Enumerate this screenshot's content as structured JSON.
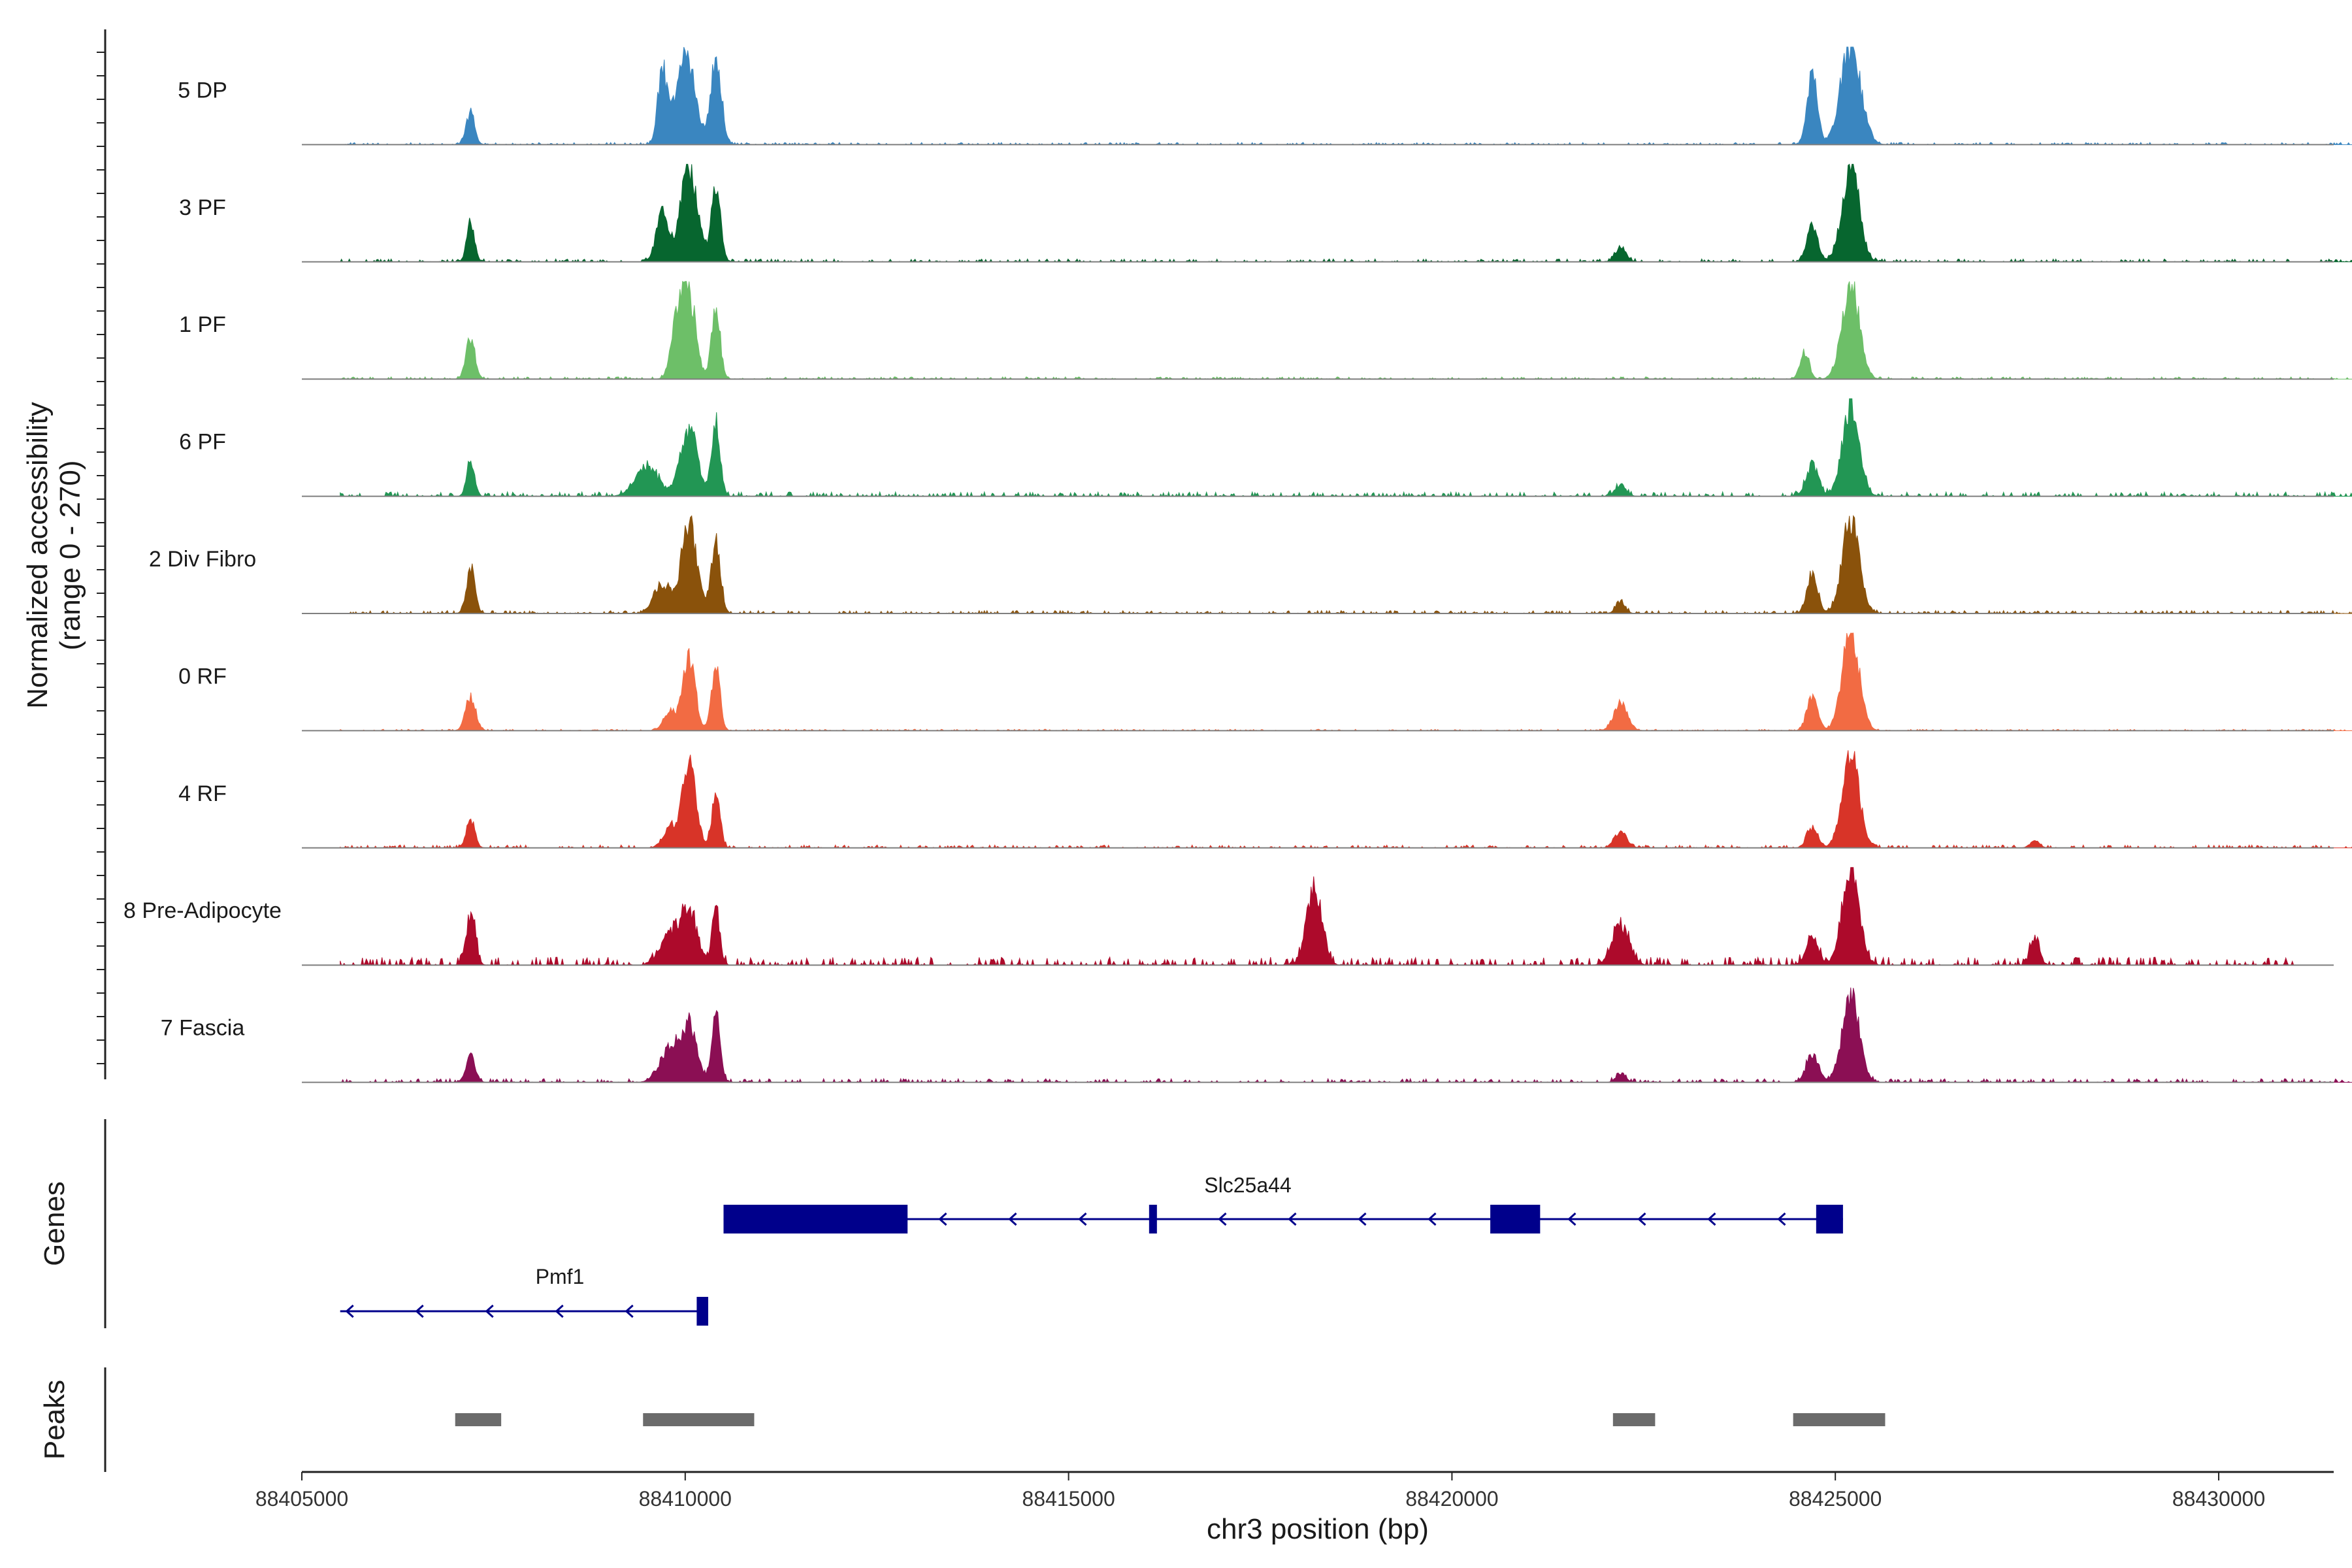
{
  "chart_data": {
    "type": "area",
    "xlabel": "chr3 position (bp)",
    "ylabel_line1": "Normalized accessibility",
    "ylabel_line2": "(range 0 - 270)",
    "y_range": [
      0,
      270
    ],
    "xlim": [
      88405000,
      88431500
    ],
    "xticks": [
      88405000,
      88410000,
      88415000,
      88420000,
      88425000,
      88430000
    ],
    "xtick_labels": [
      "88405000",
      "88410000",
      "88415000",
      "88420000",
      "88425000",
      "88430000"
    ],
    "tracks": [
      {
        "name": "5 DP",
        "color": "#3a86c0",
        "peaks": [
          [
            88407200,
            55,
            90
          ],
          [
            88409700,
            60,
            200
          ],
          [
            88410000,
            120,
            250
          ],
          [
            88410400,
            70,
            240
          ],
          [
            88424700,
            65,
            200
          ],
          [
            88425200,
            130,
            270
          ]
        ],
        "noise": 6,
        "noise_end": 88432000
      },
      {
        "name": "3 PF",
        "color": "#07662f",
        "peaks": [
          [
            88407200,
            50,
            110
          ],
          [
            88409700,
            80,
            130
          ],
          [
            88410050,
            110,
            255
          ],
          [
            88410400,
            60,
            205
          ],
          [
            88422200,
            70,
            40
          ],
          [
            88424700,
            70,
            100
          ],
          [
            88425200,
            110,
            265
          ]
        ],
        "noise": 8,
        "noise_end": 88432000
      },
      {
        "name": "1 PF",
        "color": "#6dbf68",
        "peaks": [
          [
            88407200,
            60,
            110
          ],
          [
            88409900,
            80,
            150
          ],
          [
            88410050,
            90,
            220
          ],
          [
            88410400,
            55,
            200
          ],
          [
            88424600,
            60,
            70
          ],
          [
            88425200,
            110,
            270
          ]
        ],
        "noise": 6,
        "noise_end": 88432000
      },
      {
        "name": "6 PF",
        "color": "#229654",
        "peaks": [
          [
            88407200,
            50,
            100
          ],
          [
            88409500,
            150,
            80
          ],
          [
            88410050,
            110,
            190
          ],
          [
            88410400,
            55,
            200
          ],
          [
            88422200,
            70,
            30
          ],
          [
            88424700,
            80,
            85
          ],
          [
            88425200,
            110,
            235
          ]
        ],
        "noise": 12,
        "noise_end": 88432000
      },
      {
        "name": "2 Div Fibro",
        "color": "#8a520b",
        "peaks": [
          [
            88407200,
            55,
            125
          ],
          [
            88409700,
            110,
            80
          ],
          [
            88410050,
            100,
            250
          ],
          [
            88410400,
            60,
            205
          ],
          [
            88422200,
            60,
            30
          ],
          [
            88424700,
            70,
            105
          ],
          [
            88425200,
            110,
            260
          ]
        ],
        "noise": 8,
        "noise_end": 88432000
      },
      {
        "name": "0 RF",
        "color": "#f26b43",
        "peaks": [
          [
            88407200,
            65,
            95
          ],
          [
            88409800,
            80,
            55
          ],
          [
            88410050,
            80,
            200
          ],
          [
            88410400,
            55,
            175
          ],
          [
            88422200,
            90,
            75
          ],
          [
            88424700,
            70,
            95
          ],
          [
            88425200,
            110,
            270
          ]
        ],
        "noise": 4,
        "noise_end": 88432000
      },
      {
        "name": "4 RF",
        "color": "#d83428",
        "peaks": [
          [
            88407200,
            55,
            80
          ],
          [
            88409800,
            90,
            55
          ],
          [
            88410050,
            90,
            230
          ],
          [
            88410400,
            55,
            140
          ],
          [
            88422200,
            80,
            45
          ],
          [
            88424700,
            70,
            55
          ],
          [
            88425200,
            110,
            255
          ],
          [
            88427600,
            60,
            20
          ]
        ],
        "noise": 8,
        "noise_end": 88432000
      },
      {
        "name": "8 Pre-Adipocyte",
        "color": "#ad0a2b",
        "peaks": [
          [
            88407200,
            60,
            140
          ],
          [
            88409800,
            120,
            80
          ],
          [
            88410050,
            110,
            140
          ],
          [
            88410400,
            50,
            155
          ],
          [
            88418200,
            100,
            200
          ],
          [
            88422200,
            110,
            110
          ],
          [
            88424700,
            80,
            75
          ],
          [
            88425200,
            110,
            270
          ],
          [
            88427600,
            60,
            70
          ]
        ],
        "noise": 22,
        "noise_end": 88431000
      },
      {
        "name": "7 Fascia",
        "color": "#8b0f54",
        "peaks": [
          [
            88407200,
            60,
            75
          ],
          [
            88409800,
            130,
            90
          ],
          [
            88410050,
            100,
            150
          ],
          [
            88410400,
            55,
            190
          ],
          [
            88422200,
            60,
            25
          ],
          [
            88424700,
            80,
            75
          ],
          [
            88425200,
            110,
            240
          ]
        ],
        "noise": 10,
        "noise_end": 88432000
      }
    ],
    "genes_title": "Genes",
    "genes": [
      {
        "name": "Slc25a44",
        "strand": "-",
        "row": 0,
        "start": 88410500,
        "end": 88425100,
        "exons": [
          [
            88410500,
            88412900
          ],
          [
            88416050,
            88416150
          ],
          [
            88420500,
            88421150
          ],
          [
            88424750,
            88425100
          ]
        ]
      },
      {
        "name": "Pmf1",
        "strand": "-",
        "row": 1,
        "start": 88405500,
        "end": 88410300,
        "exons": [
          [
            88410150,
            88410300
          ]
        ]
      }
    ],
    "gene_color": "#00008b",
    "peaks_title": "Peaks",
    "peak_regions": [
      [
        88407000,
        88407600
      ],
      [
        88409450,
        88410900
      ],
      [
        88422100,
        88422650
      ],
      [
        88424450,
        88425650
      ]
    ],
    "peak_color": "#6b6b6b",
    "baseline_color": "#7f7f7f"
  }
}
